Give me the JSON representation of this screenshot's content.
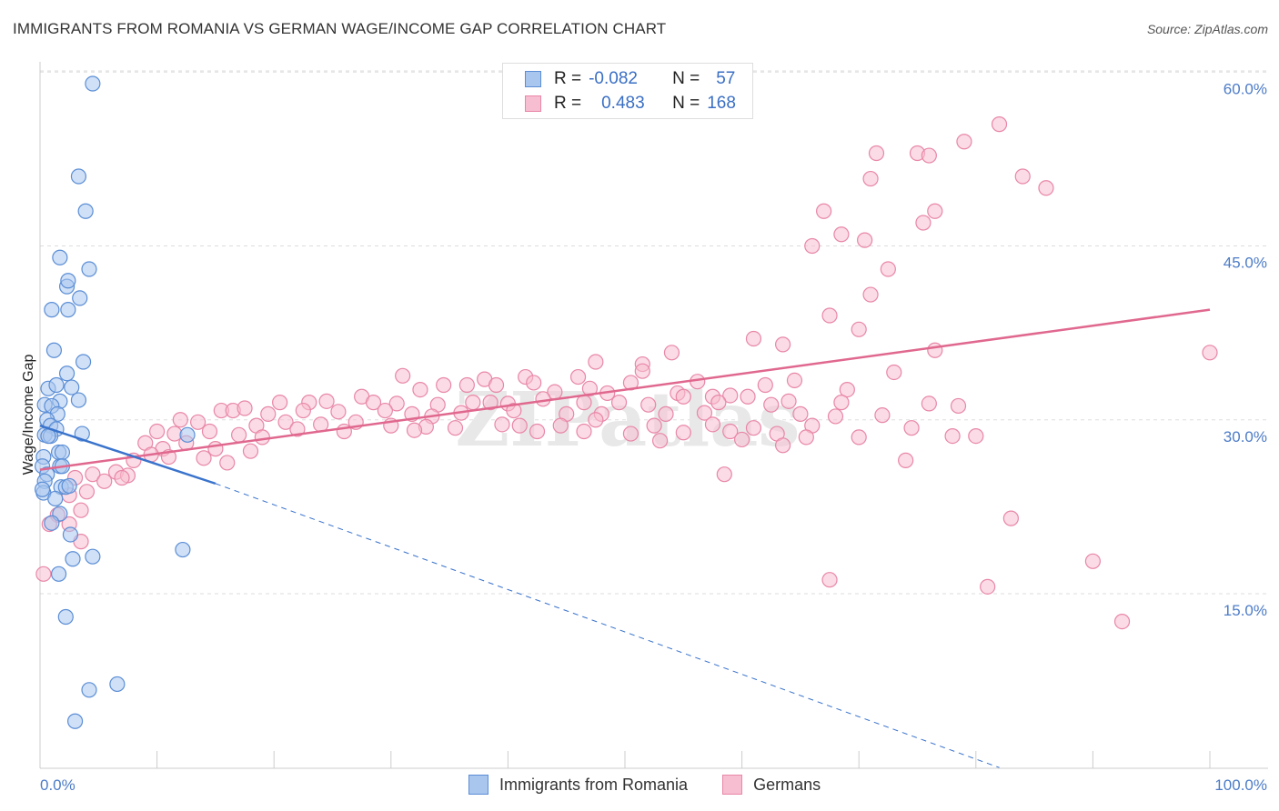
{
  "header": {
    "title": "IMMIGRANTS FROM ROMANIA VS GERMAN WAGE/INCOME GAP CORRELATION CHART",
    "source": "Source: ZipAtlas.com"
  },
  "legend": {
    "series": [
      {
        "r_label": "R =",
        "r_value": "-0.082",
        "n_label": "N =",
        "n_value": "57"
      },
      {
        "r_label": "R =",
        "r_value": "0.483",
        "n_label": "N =",
        "n_value": "168"
      }
    ],
    "bottom": [
      "Immigrants from Romania",
      "Germans"
    ]
  },
  "colors": {
    "romania_fill": "#a9c6ee",
    "romania_stroke": "#5b8ed6",
    "romania_line": "#3a73cc",
    "germans_fill": "#f7bdd0",
    "germans_stroke": "#e887a7",
    "germans_line": "#e0688f",
    "tick_text": "#4d7cc7",
    "grid": "#dddddd"
  },
  "chart_data": {
    "type": "scatter",
    "title": "IMMIGRANTS FROM ROMANIA VS GERMAN WAGE/INCOME GAP CORRELATION CHART",
    "xlabel": "",
    "ylabel": "Wage/Income Gap",
    "xlim": [
      0,
      100
    ],
    "ylim": [
      0,
      62
    ],
    "x_tick_labels": [
      "0.0%",
      "100.0%"
    ],
    "y_ticks": [
      15,
      30,
      45,
      60
    ],
    "y_tick_labels": [
      "15.0%",
      "30.0%",
      "45.0%",
      "60.0%"
    ],
    "grid": true,
    "legend_position": "top-center",
    "watermark": "ZIPatlas",
    "series": [
      {
        "name": "Immigrants from Romania",
        "r": -0.082,
        "n": 57,
        "trend": {
          "x0": 0,
          "y0": 29.5,
          "x1": 15,
          "y1": 24.5,
          "dashed_to_x": 82,
          "dashed_to_y": 0
        },
        "points": [
          [
            4.5,
            59
          ],
          [
            3.3,
            51
          ],
          [
            3.9,
            48
          ],
          [
            1.7,
            44
          ],
          [
            4.2,
            43
          ],
          [
            2.3,
            41.5
          ],
          [
            2.4,
            42
          ],
          [
            3.4,
            40.5
          ],
          [
            1.0,
            39.5
          ],
          [
            2.4,
            39.5
          ],
          [
            1.2,
            36
          ],
          [
            3.7,
            35
          ],
          [
            2.3,
            34
          ],
          [
            0.7,
            32.7
          ],
          [
            1.4,
            33
          ],
          [
            2.7,
            32.8
          ],
          [
            1.7,
            31.6
          ],
          [
            3.3,
            31.7
          ],
          [
            0.4,
            31.3
          ],
          [
            1.0,
            31.2
          ],
          [
            1.5,
            30.5
          ],
          [
            0.6,
            30
          ],
          [
            0.9,
            29.5
          ],
          [
            1.4,
            29.2
          ],
          [
            0.4,
            28.7
          ],
          [
            0.9,
            28.6
          ],
          [
            0.7,
            28.6
          ],
          [
            3.6,
            28.8
          ],
          [
            12.6,
            28.7
          ],
          [
            1.6,
            27.2
          ],
          [
            1.9,
            27.2
          ],
          [
            0.3,
            26.8
          ],
          [
            0.2,
            26
          ],
          [
            1.7,
            26
          ],
          [
            1.9,
            26
          ],
          [
            0.6,
            25.3
          ],
          [
            0.4,
            24.7
          ],
          [
            1.8,
            24.2
          ],
          [
            2.2,
            24.2
          ],
          [
            2.5,
            24.3
          ],
          [
            0.3,
            23.7
          ],
          [
            1.3,
            23.2
          ],
          [
            0.2,
            24
          ],
          [
            1.7,
            21.9
          ],
          [
            1.0,
            21.1
          ],
          [
            2.6,
            20.1
          ],
          [
            2.8,
            18
          ],
          [
            4.5,
            18.2
          ],
          [
            12.2,
            18.8
          ],
          [
            1.6,
            16.7
          ],
          [
            2.2,
            13
          ],
          [
            4.2,
            6.7
          ],
          [
            6.6,
            7.2
          ],
          [
            3.0,
            4
          ]
        ]
      },
      {
        "name": "Germans",
        "r": 0.483,
        "n": 168,
        "trend": {
          "x0": 0,
          "y0": 25.7,
          "x1": 100,
          "y1": 39.5
        },
        "points": [
          [
            82,
            55.5
          ],
          [
            79,
            54
          ],
          [
            75,
            53
          ],
          [
            76,
            52.8
          ],
          [
            71.5,
            53
          ],
          [
            84,
            51
          ],
          [
            71,
            50.8
          ],
          [
            86,
            50
          ],
          [
            76.5,
            48
          ],
          [
            75.5,
            47
          ],
          [
            67,
            48
          ],
          [
            68.5,
            46
          ],
          [
            70.5,
            45.5
          ],
          [
            66,
            45
          ],
          [
            72.5,
            43
          ],
          [
            71,
            40.8
          ],
          [
            67.5,
            39
          ],
          [
            70,
            37.8
          ],
          [
            61,
            37
          ],
          [
            63.5,
            36.5
          ],
          [
            76.5,
            36
          ],
          [
            100,
            35.8
          ],
          [
            54,
            35.8
          ],
          [
            47.5,
            35
          ],
          [
            51.5,
            34.8
          ],
          [
            51.5,
            34.2
          ],
          [
            73,
            34.1
          ],
          [
            31,
            33.8
          ],
          [
            46,
            33.7
          ],
          [
            41.5,
            33.7
          ],
          [
            38,
            33.5
          ],
          [
            42.2,
            33.2
          ],
          [
            56.2,
            33.3
          ],
          [
            50.5,
            33.2
          ],
          [
            64.5,
            33.4
          ],
          [
            36.5,
            33
          ],
          [
            34.5,
            33
          ],
          [
            39,
            33
          ],
          [
            62,
            33
          ],
          [
            32.5,
            32.6
          ],
          [
            47,
            32.7
          ],
          [
            69,
            32.6
          ],
          [
            44,
            32.4
          ],
          [
            48.5,
            32.3
          ],
          [
            54.5,
            32.3
          ],
          [
            59,
            32.1
          ],
          [
            60.5,
            32
          ],
          [
            57.5,
            32
          ],
          [
            55,
            32
          ],
          [
            23,
            31.5
          ],
          [
            20.5,
            31.5
          ],
          [
            24.5,
            31.6
          ],
          [
            27.5,
            32
          ],
          [
            28.5,
            31.5
          ],
          [
            30.5,
            31.4
          ],
          [
            34,
            31.3
          ],
          [
            37,
            31.5
          ],
          [
            38.5,
            31.5
          ],
          [
            40,
            31.4
          ],
          [
            43,
            31.8
          ],
          [
            46.5,
            31.5
          ],
          [
            49.5,
            31.5
          ],
          [
            52,
            31.3
          ],
          [
            58,
            31.5
          ],
          [
            62.5,
            31.3
          ],
          [
            64,
            31.6
          ],
          [
            78.5,
            31.2
          ],
          [
            76,
            31.4
          ],
          [
            68.5,
            31.5
          ],
          [
            15.5,
            30.8
          ],
          [
            16.5,
            30.8
          ],
          [
            17.5,
            31
          ],
          [
            19.5,
            30.5
          ],
          [
            22.5,
            30.8
          ],
          [
            25.5,
            30.7
          ],
          [
            29.5,
            30.8
          ],
          [
            31.8,
            30.5
          ],
          [
            33.5,
            30.3
          ],
          [
            36,
            30.6
          ],
          [
            40.5,
            30.8
          ],
          [
            45,
            30.5
          ],
          [
            48,
            30.5
          ],
          [
            53.5,
            30.5
          ],
          [
            56.8,
            30.6
          ],
          [
            65,
            30.5
          ],
          [
            68,
            30.3
          ],
          [
            72,
            30.4
          ],
          [
            12,
            30
          ],
          [
            13.5,
            29.8
          ],
          [
            18.5,
            29.5
          ],
          [
            21,
            29.8
          ],
          [
            24,
            29.6
          ],
          [
            27,
            29.8
          ],
          [
            30,
            29.5
          ],
          [
            33,
            29.4
          ],
          [
            35.5,
            29.3
          ],
          [
            39.5,
            29.6
          ],
          [
            41,
            29.5
          ],
          [
            44.5,
            29.5
          ],
          [
            47.5,
            30
          ],
          [
            52.5,
            29.5
          ],
          [
            57.5,
            29.6
          ],
          [
            61,
            29.3
          ],
          [
            66,
            29.5
          ],
          [
            74.5,
            29.3
          ],
          [
            10,
            29
          ],
          [
            11.5,
            28.8
          ],
          [
            14.5,
            29
          ],
          [
            17,
            28.7
          ],
          [
            19,
            28.5
          ],
          [
            22,
            29.2
          ],
          [
            26,
            29
          ],
          [
            32,
            29.1
          ],
          [
            42.5,
            29
          ],
          [
            46.5,
            29
          ],
          [
            50.5,
            28.8
          ],
          [
            55,
            28.9
          ],
          [
            59,
            29
          ],
          [
            63,
            28.8
          ],
          [
            65.5,
            28.5
          ],
          [
            70,
            28.5
          ],
          [
            80,
            28.6
          ],
          [
            78,
            28.6
          ],
          [
            9,
            28
          ],
          [
            10.5,
            27.5
          ],
          [
            12.5,
            28
          ],
          [
            15,
            27.5
          ],
          [
            18,
            27.3
          ],
          [
            53,
            28.2
          ],
          [
            60,
            28.3
          ],
          [
            63.5,
            27.8
          ],
          [
            8,
            26.5
          ],
          [
            9.5,
            27
          ],
          [
            11,
            26.8
          ],
          [
            14,
            26.7
          ],
          [
            16,
            26.3
          ],
          [
            74,
            26.5
          ],
          [
            3,
            25
          ],
          [
            4.5,
            25.3
          ],
          [
            6.5,
            25.5
          ],
          [
            7.5,
            25.2
          ],
          [
            5.5,
            24.7
          ],
          [
            7,
            25
          ],
          [
            58.5,
            25.3
          ],
          [
            2.5,
            23.5
          ],
          [
            4,
            23.8
          ],
          [
            3.5,
            22.2
          ],
          [
            1.5,
            21.8
          ],
          [
            2.5,
            21
          ],
          [
            0.8,
            21
          ],
          [
            83,
            21.5
          ],
          [
            3.5,
            19.5
          ],
          [
            0.3,
            16.7
          ],
          [
            90,
            17.8
          ],
          [
            67.5,
            16.2
          ],
          [
            81,
            15.6
          ],
          [
            92.5,
            12.6
          ]
        ]
      }
    ]
  }
}
